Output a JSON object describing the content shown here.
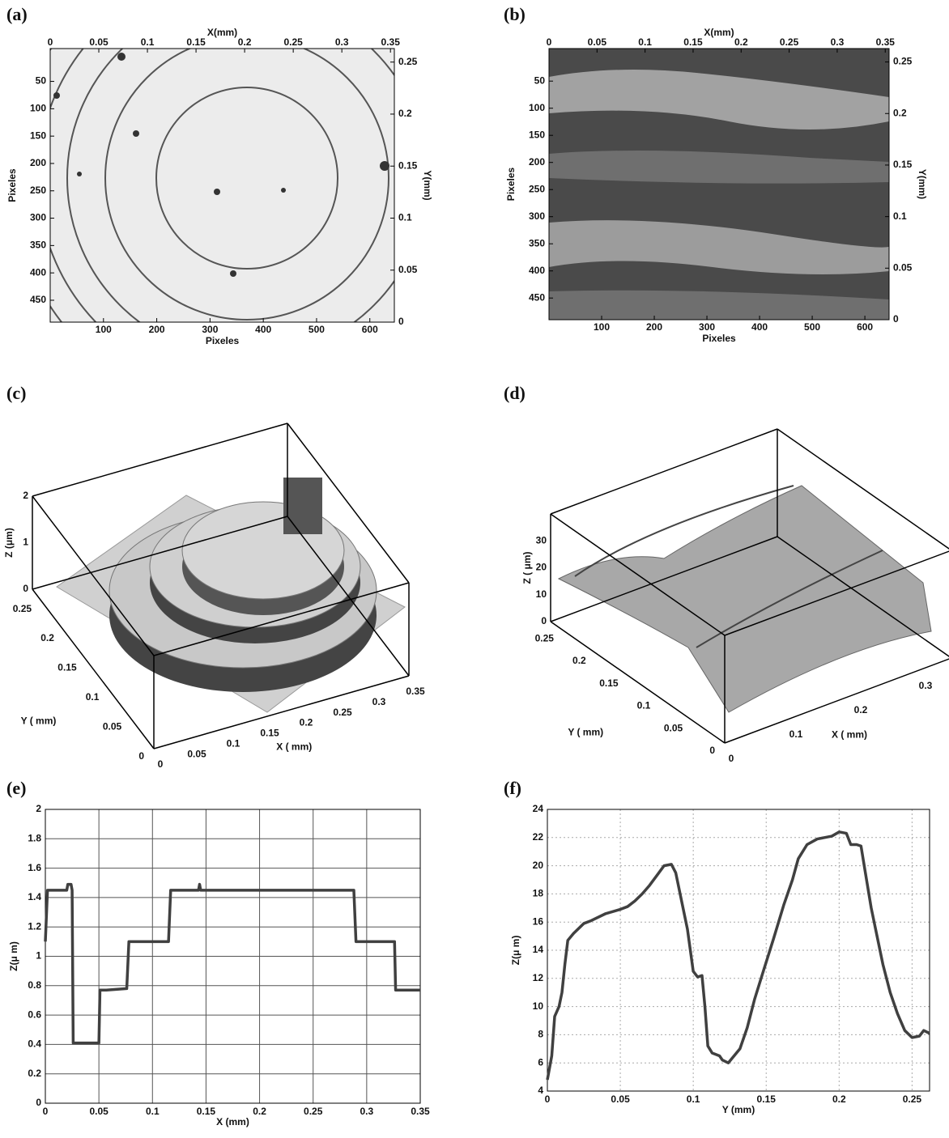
{
  "chart_data": [
    {
      "type": "image",
      "panel_label": "(a)",
      "xlabel": "Pixeles",
      "ylabel": "Pixeles",
      "x2label": "X(mm)",
      "y2label": "Y(mm)",
      "xlim": [
        0,
        646
      ],
      "ylim": [
        490,
        -10
      ],
      "xticks": [
        100,
        200,
        300,
        400,
        500,
        600
      ],
      "yticks": [
        50,
        100,
        150,
        200,
        250,
        300,
        350,
        400,
        450
      ],
      "x2lim": [
        0,
        0.354
      ],
      "x2ticks": [
        0,
        0.05,
        0.1,
        0.15,
        0.2,
        0.25,
        0.3,
        0.35
      ],
      "y2lim": [
        0,
        0.263
      ],
      "y2ticks": [
        0,
        0.05,
        0.1,
        0.15,
        0.2,
        0.25
      ]
    },
    {
      "type": "image",
      "panel_label": "(b)",
      "xlabel": "Pixeles",
      "ylabel": "Pixeles",
      "x2label": "X(mm)",
      "y2label": "Y(mm)",
      "xlim": [
        0,
        646
      ],
      "ylim": [
        490,
        -10
      ],
      "xticks": [
        100,
        200,
        300,
        400,
        500,
        600
      ],
      "yticks": [
        50,
        100,
        150,
        200,
        250,
        300,
        350,
        400,
        450
      ],
      "x2lim": [
        0,
        0.354
      ],
      "x2ticks": [
        0,
        0.05,
        0.1,
        0.15,
        0.2,
        0.25,
        0.3,
        0.35
      ],
      "y2lim": [
        0,
        0.263
      ],
      "y2ticks": [
        0,
        0.05,
        0.1,
        0.15,
        0.2,
        0.25
      ]
    },
    {
      "type": "surface3d",
      "panel_label": "(c)",
      "xlabel": "X ( mm)",
      "ylabel": "Y ( mm)",
      "zlabel": "Z (μm)",
      "xlim": [
        0,
        0.35
      ],
      "ylim": [
        0,
        0.27
      ],
      "zlim": [
        0,
        2
      ],
      "xticks": [
        0,
        0.05,
        0.1,
        0.15,
        0.2,
        0.25,
        0.3,
        0.35
      ],
      "yticks": [
        0,
        0.05,
        0.1,
        0.15,
        0.2,
        0.25
      ],
      "zticks": [
        0,
        1,
        2
      ]
    },
    {
      "type": "surface3d",
      "panel_label": "(d)",
      "xlabel": "X ( mm)",
      "ylabel": "Y ( mm)",
      "zlabel": "Z ( μm)",
      "xlim": [
        0,
        0.35
      ],
      "ylim": [
        0,
        0.27
      ],
      "zlim": [
        0,
        40
      ],
      "xticks": [
        0,
        0.1,
        0.2,
        0.3
      ],
      "yticks": [
        0,
        0.05,
        0.1,
        0.15,
        0.2,
        0.25
      ],
      "zticks": [
        0,
        10,
        20,
        30
      ]
    },
    {
      "type": "line",
      "panel_label": "(e)",
      "xlabel": "X (mm)",
      "ylabel": "Z(μ m)",
      "color": "#404040",
      "grid": "solid",
      "xlim": [
        0,
        0.35
      ],
      "ylim": [
        0,
        2
      ],
      "xticks": [
        0,
        0.05,
        0.1,
        0.15,
        0.2,
        0.25,
        0.3,
        0.35
      ],
      "yticks": [
        0,
        0.2,
        0.4,
        0.6,
        0.8,
        1,
        1.2,
        1.4,
        1.6,
        1.8,
        2
      ],
      "x": [
        0,
        0.002,
        0.02,
        0.021,
        0.024,
        0.025,
        0.026,
        0.05,
        0.051,
        0.057,
        0.076,
        0.078,
        0.115,
        0.117,
        0.143,
        0.144,
        0.145,
        0.288,
        0.29,
        0.326,
        0.327,
        0.35
      ],
      "values": [
        1.1,
        1.45,
        1.45,
        1.49,
        1.49,
        1.45,
        0.41,
        0.41,
        0.77,
        0.77,
        0.78,
        1.1,
        1.1,
        1.45,
        1.45,
        1.49,
        1.45,
        1.45,
        1.1,
        1.1,
        0.77,
        0.77
      ]
    },
    {
      "type": "line",
      "panel_label": "(f)",
      "xlabel": "Y (mm)",
      "ylabel": "Z(μ m)",
      "color": "#404040",
      "grid": "dotted",
      "xlim": [
        0,
        0.262
      ],
      "ylim": [
        4,
        24
      ],
      "xticks": [
        0,
        0.05,
        0.1,
        0.15,
        0.2,
        0.25
      ],
      "yticks": [
        4,
        6,
        8,
        10,
        12,
        14,
        16,
        18,
        20,
        22,
        24
      ],
      "x": [
        0,
        0.003,
        0.005,
        0.008,
        0.01,
        0.012,
        0.014,
        0.018,
        0.025,
        0.03,
        0.04,
        0.05,
        0.055,
        0.06,
        0.065,
        0.07,
        0.075,
        0.08,
        0.085,
        0.088,
        0.092,
        0.096,
        0.1,
        0.103,
        0.106,
        0.108,
        0.11,
        0.113,
        0.118,
        0.12,
        0.124,
        0.128,
        0.132,
        0.137,
        0.142,
        0.148,
        0.155,
        0.162,
        0.168,
        0.172,
        0.178,
        0.185,
        0.19,
        0.195,
        0.2,
        0.205,
        0.208,
        0.212,
        0.215,
        0.218,
        0.222,
        0.226,
        0.23,
        0.235,
        0.24,
        0.245,
        0.25,
        0.255,
        0.258,
        0.262
      ],
      "values": [
        4.8,
        6.5,
        9.3,
        10,
        11,
        13,
        14.7,
        15.2,
        15.9,
        16.1,
        16.6,
        16.9,
        17.1,
        17.5,
        18,
        18.6,
        19.3,
        20,
        20.1,
        19.5,
        17.5,
        15.5,
        12.5,
        12.1,
        12.2,
        10,
        7.2,
        6.7,
        6.5,
        6.2,
        6,
        6.5,
        7,
        8.5,
        10.5,
        12.5,
        14.8,
        17.2,
        19,
        20.5,
        21.5,
        21.9,
        22,
        22.1,
        22.4,
        22.3,
        21.5,
        21.5,
        21.4,
        19.5,
        17,
        15,
        13,
        11,
        9.5,
        8.3,
        7.8,
        7.9,
        8.3,
        8.1
      ]
    }
  ]
}
